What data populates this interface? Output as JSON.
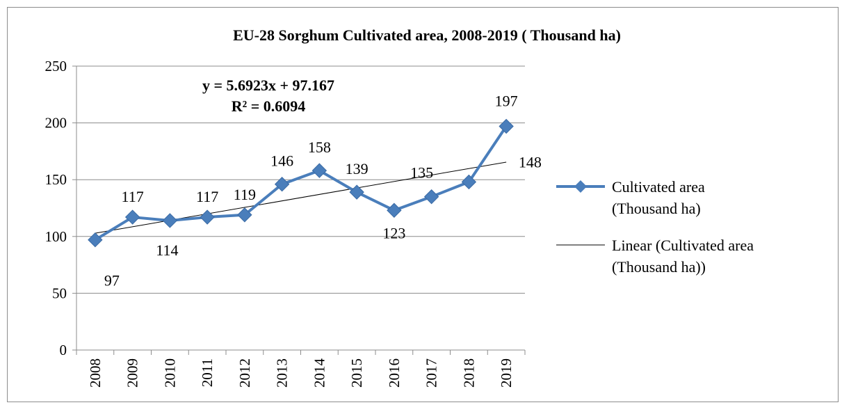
{
  "chart_data": {
    "type": "line",
    "title": "EU-28 Sorghum Cultivated area, 2008-2019 ( Thousand ha)",
    "categories": [
      "2008",
      "2009",
      "2010",
      "2011",
      "2012",
      "2013",
      "2014",
      "2015",
      "2016",
      "2017",
      "2018",
      "2019"
    ],
    "series": [
      {
        "name": "Cultivated area (Thousand ha)",
        "values": [
          97,
          117,
          114,
          117,
          119,
          146,
          158,
          139,
          123,
          135,
          148,
          197
        ],
        "data_labels": [
          "97",
          "117",
          "114",
          "117",
          "119",
          "146",
          "158",
          "139",
          "123",
          "135",
          "148",
          "197"
        ],
        "color": "#4a7ebb",
        "marker": "diamond"
      }
    ],
    "trendline": {
      "name": "Linear (Cultivated area (Thousand ha))",
      "type": "linear",
      "slope": 5.6923,
      "intercept": 97.167,
      "equation": "y = 5.6923x + 97.167",
      "r_squared": "R² = 0.6094",
      "color": "#000000"
    },
    "ylim": [
      0,
      250
    ],
    "yticks": [
      "0",
      "50",
      "100",
      "150",
      "200",
      "250"
    ],
    "grid": true,
    "legend": {
      "position": "right",
      "series_label_lines": [
        "Cultivated area",
        "(Thousand ha)"
      ],
      "trend_label_lines": [
        "Linear (Cultivated area",
        "(Thousand ha))"
      ]
    }
  }
}
